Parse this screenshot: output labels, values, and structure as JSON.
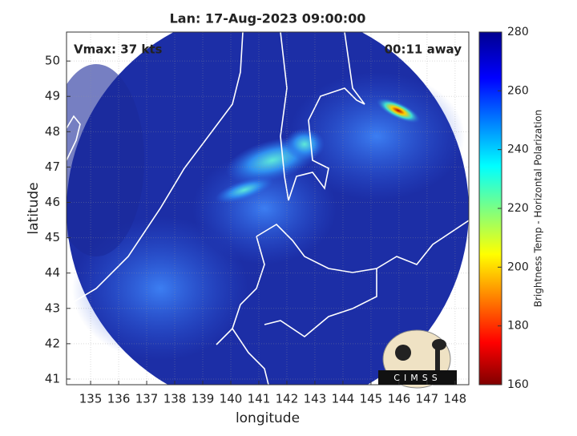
{
  "map": {
    "title": "Lan: 17-Aug-2023 09:00:00",
    "annotation_left": "Vmax: 37 kts",
    "annotation_right": "00:11 away",
    "xlabel": "longitude",
    "ylabel": "latitude",
    "xlim": [
      134.14,
      148.49
    ],
    "ylim": [
      40.84,
      50.82
    ],
    "xticks": [
      135,
      136,
      137,
      138,
      139,
      140,
      141,
      142,
      143,
      144,
      145,
      146,
      147,
      148
    ],
    "yticks": [
      41,
      42,
      43,
      44,
      45,
      46,
      47,
      48,
      49,
      50
    ],
    "grid": true,
    "colorbar": {
      "label": "Brightness Temp - Horizontal Polarization",
      "lim": [
        160,
        280
      ],
      "ticks": [
        160,
        180,
        200,
        220,
        240,
        260,
        280
      ]
    },
    "logo": "CIMSS"
  }
}
